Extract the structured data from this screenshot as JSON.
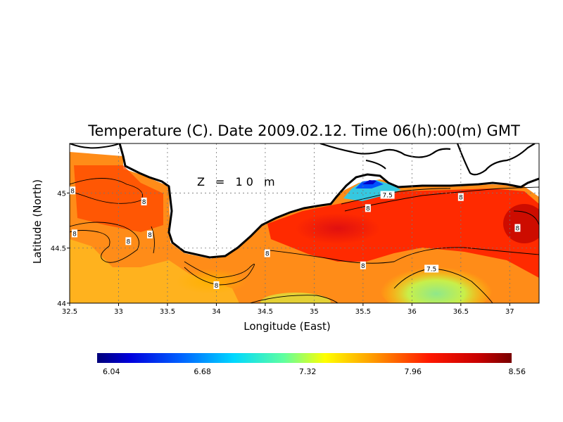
{
  "chart_data": {
    "type": "heatmap",
    "title": "Temperature (C). Date 2009.02.12. Time 06(h):00(m) GMT",
    "depth_label": "Z = 10 m",
    "xlabel": "Longitude (East)",
    "ylabel": "Latitude (North)",
    "xlim": [
      32.5,
      37.3
    ],
    "ylim": [
      44.0,
      45.45
    ],
    "x_ticks": [
      "32.5",
      "33",
      "33.5",
      "34",
      "34.5",
      "35",
      "35.5",
      "36",
      "36.5",
      "37"
    ],
    "x_tick_values": [
      32.5,
      33,
      33.5,
      34,
      34.5,
      35,
      35.5,
      36,
      36.5,
      37
    ],
    "y_ticks": [
      "44",
      "44.5",
      "45"
    ],
    "y_tick_values": [
      44,
      44.5,
      45
    ],
    "grid": true,
    "colorbar": {
      "min": 6.04,
      "max": 8.56,
      "ticks": [
        "6.04",
        "6.68",
        "7.32",
        "7.96",
        "8.56"
      ],
      "tick_values": [
        6.04,
        6.68,
        7.32,
        7.96,
        8.56
      ],
      "placement": "bottom"
    },
    "contour_labels": [
      {
        "text": "8",
        "lon": 32.53,
        "lat": 45.02
      },
      {
        "text": "8",
        "lon": 33.26,
        "lat": 44.92
      },
      {
        "text": "8",
        "lon": 32.55,
        "lat": 44.63
      },
      {
        "text": "8",
        "lon": 33.1,
        "lat": 44.56
      },
      {
        "text": "8",
        "lon": 33.32,
        "lat": 44.62
      },
      {
        "text": "8",
        "lon": 34.52,
        "lat": 44.45
      },
      {
        "text": "8",
        "lon": 34.0,
        "lat": 44.16
      },
      {
        "text": "8",
        "lon": 35.5,
        "lat": 44.34
      },
      {
        "text": "8",
        "lon": 35.55,
        "lat": 44.86
      },
      {
        "text": "8",
        "lon": 36.5,
        "lat": 44.96
      },
      {
        "text": "8",
        "lon": 37.08,
        "lat": 44.68
      },
      {
        "text": "7.5",
        "lon": 35.75,
        "lat": 44.98
      },
      {
        "text": "7.5",
        "lon": 36.2,
        "lat": 44.31
      }
    ]
  }
}
